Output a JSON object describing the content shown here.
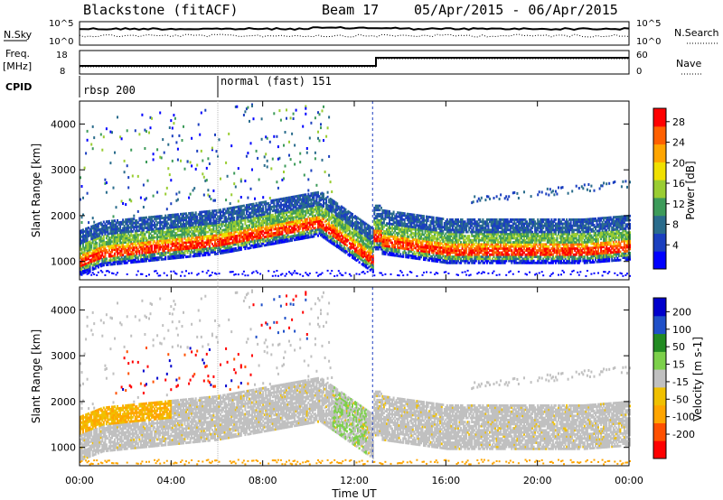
{
  "header": {
    "station": "Blackstone (fitACF)",
    "beam": "Beam 17",
    "date_range": "05/Apr/2015 - 06/Apr/2015"
  },
  "top_panels": {
    "nsky_label": "N.Sky",
    "nsearch_label": "N.Search",
    "freq_label_1": "Freq.",
    "freq_label_2": "[MHz]",
    "nave_label": "Nave",
    "cpid_label": "CPID",
    "nsky_ticks": [
      "10^5",
      "10^0"
    ],
    "nsearch_ticks": [
      "10^5",
      "10^0"
    ],
    "freq_ticks": [
      "18",
      "8"
    ],
    "nave_ticks": [
      "60",
      "0"
    ],
    "cpid_segments": [
      {
        "label": "rbsp 200",
        "start_hour": 0
      },
      {
        "label": "normal (fast) 151",
        "start_hour": 6
      }
    ]
  },
  "chart_data": [
    {
      "type": "heatmap",
      "name": "power",
      "ylabel": "Slant Range [km]",
      "xlabel": "",
      "y_ticks": [
        "1000",
        "2000",
        "3000",
        "4000"
      ],
      "ylim": [
        600,
        4500
      ],
      "colorbar_label": "Power [dB]",
      "colorbar_ticks": [
        "4",
        "8",
        "12",
        "16",
        "20",
        "24",
        "28"
      ],
      "colorbar_colors": [
        "#0000ff",
        "#1b3fbf",
        "#2a6c8c",
        "#3d9b5a",
        "#9acd32",
        "#f0e000",
        "#ffa500",
        "#ff6000",
        "#ff0000"
      ]
    },
    {
      "type": "heatmap",
      "name": "velocity",
      "ylabel": "Slant Range [km]",
      "xlabel": "Time UT",
      "x_ticks": [
        "00:00",
        "04:00",
        "08:00",
        "12:00",
        "16:00",
        "20:00",
        "00:00"
      ],
      "y_ticks": [
        "1000",
        "2000",
        "3000",
        "4000"
      ],
      "ylim": [
        600,
        4500
      ],
      "xlim_hours": [
        0,
        24
      ],
      "colorbar_label": "Velocity [m s-1]",
      "colorbar_ticks": [
        "200",
        "100",
        "50",
        "15",
        "-15",
        "-50",
        "-100",
        "-200"
      ],
      "colorbar_colors": [
        "#0000cc",
        "#2050c8",
        "#228b22",
        "#7cd04a",
        "#c0c0c0",
        "#f0c000",
        "#ffa500",
        "#ff5000",
        "#ff0000"
      ]
    }
  ]
}
